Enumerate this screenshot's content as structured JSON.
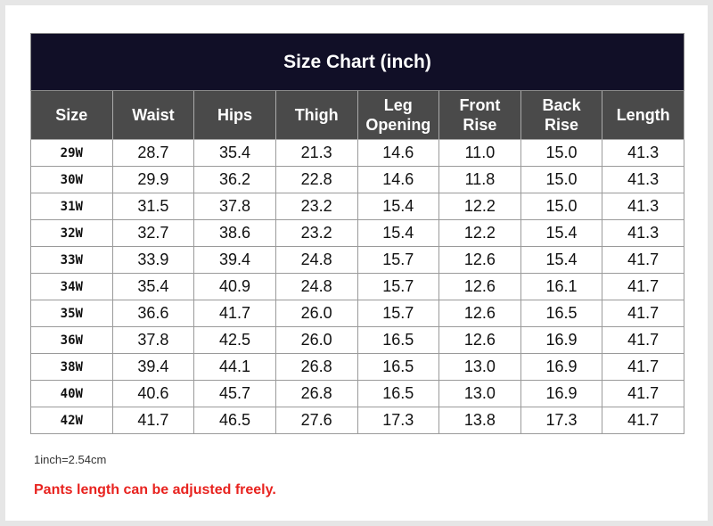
{
  "title": "Size Chart  (inch)",
  "headers": [
    "Size",
    "Waist",
    "Hips",
    "Thigh",
    "Leg\nOpening",
    "Front\nRise",
    "Back\nRise",
    "Length"
  ],
  "rows": [
    [
      "29W",
      "28.7",
      "35.4",
      "21.3",
      "14.6",
      "11.0",
      "15.0",
      "41.3"
    ],
    [
      "30W",
      "29.9",
      "36.2",
      "22.8",
      "14.6",
      "11.8",
      "15.0",
      "41.3"
    ],
    [
      "31W",
      "31.5",
      "37.8",
      "23.2",
      "15.4",
      "12.2",
      "15.0",
      "41.3"
    ],
    [
      "32W",
      "32.7",
      "38.6",
      "23.2",
      "15.4",
      "12.2",
      "15.4",
      "41.3"
    ],
    [
      "33W",
      "33.9",
      "39.4",
      "24.8",
      "15.7",
      "12.6",
      "15.4",
      "41.7"
    ],
    [
      "34W",
      "35.4",
      "40.9",
      "24.8",
      "15.7",
      "12.6",
      "16.1",
      "41.7"
    ],
    [
      "35W",
      "36.6",
      "41.7",
      "26.0",
      "15.7",
      "12.6",
      "16.5",
      "41.7"
    ],
    [
      "36W",
      "37.8",
      "42.5",
      "26.0",
      "16.5",
      "12.6",
      "16.9",
      "41.7"
    ],
    [
      "38W",
      "39.4",
      "44.1",
      "26.8",
      "16.5",
      "13.0",
      "16.9",
      "41.7"
    ],
    [
      "40W",
      "40.6",
      "45.7",
      "26.8",
      "16.5",
      "13.0",
      "16.9",
      "41.7"
    ],
    [
      "42W",
      "41.7",
      "46.5",
      "27.6",
      "17.3",
      "13.8",
      "17.3",
      "41.7"
    ]
  ],
  "note": "1inch=2.54cm",
  "warning": "Pants length can be adjusted freely.",
  "colors": {
    "title_bg": "#110f27",
    "header_bg": "#4a4a4a",
    "warning_text": "#e8231f"
  }
}
